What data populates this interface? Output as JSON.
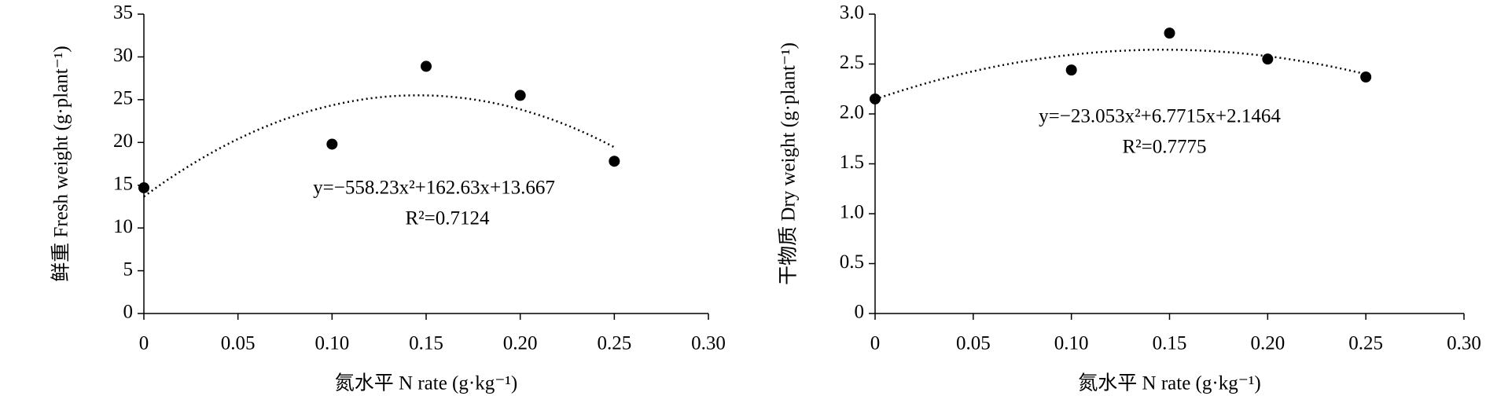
{
  "chart_data": [
    {
      "type": "scatter",
      "y_label": "鲜重 Fresh weight (g·plant⁻¹)",
      "x_label": "氮水平 N rate (g·kg⁻¹)",
      "x": [
        0,
        0.1,
        0.15,
        0.2,
        0.25
      ],
      "values": [
        14.7,
        19.8,
        28.9,
        25.5,
        17.8
      ],
      "color": "#000000",
      "xlim": [
        0,
        0.3
      ],
      "xticks": [
        0,
        0.05,
        {
          "value": 0.1,
          "label": "0.10"
        },
        0.15,
        {
          "value": 0.2,
          "label": "0.20"
        },
        0.25,
        {
          "value": 0.3,
          "label": "0.30"
        }
      ],
      "ylim": [
        0,
        35
      ],
      "yticks": [
        0,
        5,
        10,
        15,
        20,
        25,
        30,
        35
      ],
      "trendline": {
        "coefficients": [
          -558.23,
          162.63,
          13.667
        ],
        "equation": "y=−558.23x²+162.63x+13.667",
        "r_squared": "R²=0.7124"
      }
    },
    {
      "type": "scatter",
      "y_label": "干物质 Dry weight (g·plant⁻¹)",
      "x_label": "氮水平 N rate (g·kg⁻¹)",
      "x": [
        0,
        0.1,
        0.15,
        0.2,
        0.25
      ],
      "values": [
        2.15,
        2.44,
        2.81,
        2.55,
        2.37
      ],
      "color": "#000000",
      "xlim": [
        0,
        0.3
      ],
      "xticks": [
        0,
        0.05,
        {
          "value": 0.1,
          "label": "0.10"
        },
        0.15,
        {
          "value": 0.2,
          "label": "0.20"
        },
        0.25,
        {
          "value": 0.3,
          "label": "0.30"
        }
      ],
      "ylim": [
        0,
        3
      ],
      "yticks": [
        0,
        0.5,
        {
          "value": 1,
          "label": "1.0"
        },
        1.5,
        {
          "value": 2,
          "label": "2.0"
        },
        2.5,
        {
          "value": 3,
          "label": "3.0"
        }
      ],
      "trendline": {
        "coefficients": [
          -23.053,
          6.7715,
          2.1464
        ],
        "equation": "y=−23.053x²+6.7715x+2.1464",
        "r_squared": "R²=0.7775"
      }
    }
  ]
}
